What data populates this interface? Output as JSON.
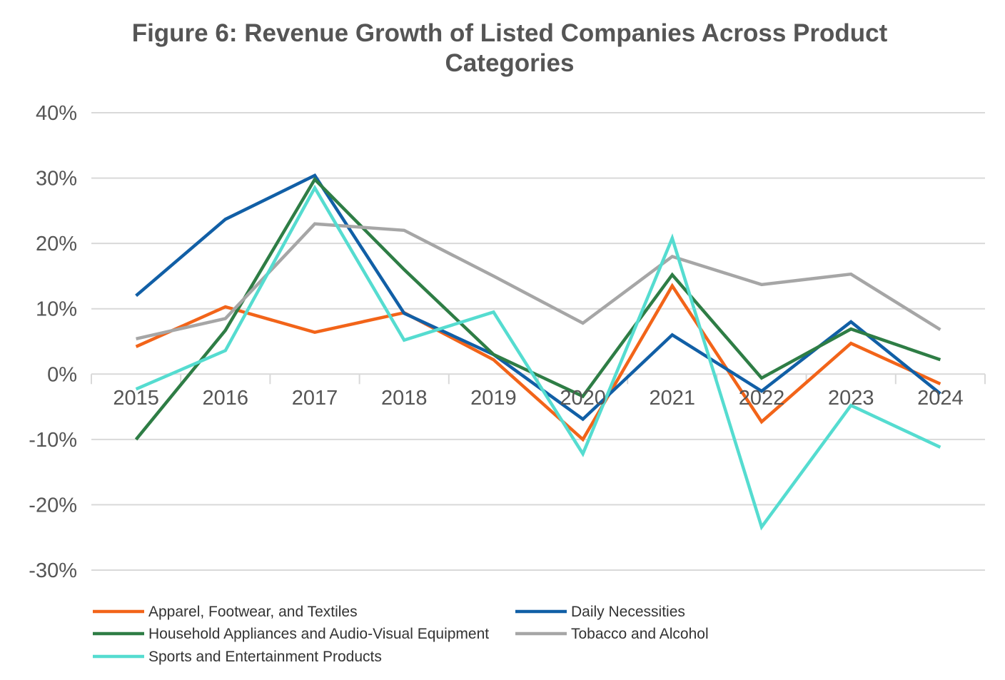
{
  "chart_data": {
    "type": "line",
    "title_line1": "Figure 6: Revenue Growth of Listed Companies Across Product",
    "title_line2": "Categories",
    "xlabel": "",
    "ylabel": "",
    "categories": [
      "2015",
      "2016",
      "2017",
      "2018",
      "2019",
      "2020",
      "2021",
      "2022",
      "2023",
      "2024"
    ],
    "ylim": [
      -0.3,
      0.4
    ],
    "yticks": [
      0.4,
      0.3,
      0.2,
      0.1,
      0.0,
      -0.1,
      -0.2,
      -0.3
    ],
    "ytick_labels": [
      "40%",
      "30%",
      "20%",
      "10%",
      "0%",
      "-10%",
      "-20%",
      "-30%"
    ],
    "grid": true,
    "legend_position": "bottom",
    "series": [
      {
        "name": "Apparel, Footwear, and Textiles",
        "color": "#F26419",
        "values": [
          0.042,
          0.103,
          0.064,
          0.094,
          0.022,
          -0.1,
          0.135,
          -0.073,
          0.047,
          -0.015
        ]
      },
      {
        "name": "Daily Necessities",
        "color": "#115FA6",
        "values": [
          0.12,
          0.237,
          0.304,
          0.093,
          0.03,
          -0.069,
          0.06,
          -0.026,
          0.08,
          -0.03
        ]
      },
      {
        "name": "Household Appliances and Audio-Visual Equipment",
        "color": "#2E7D45",
        "values": [
          -0.1,
          0.067,
          0.298,
          0.16,
          0.03,
          -0.034,
          0.152,
          -0.006,
          0.069,
          0.022
        ]
      },
      {
        "name": "Tobacco and Alcohol",
        "color": "#A6A6A6",
        "values": [
          0.054,
          0.085,
          0.23,
          0.22,
          0.15,
          0.078,
          0.18,
          0.137,
          0.153,
          0.068
        ]
      },
      {
        "name": "Sports and Entertainment Products",
        "color": "#55DCD0",
        "values": [
          -0.023,
          0.036,
          0.285,
          0.052,
          0.095,
          -0.122,
          0.208,
          -0.234,
          -0.048,
          -0.112
        ]
      }
    ]
  }
}
